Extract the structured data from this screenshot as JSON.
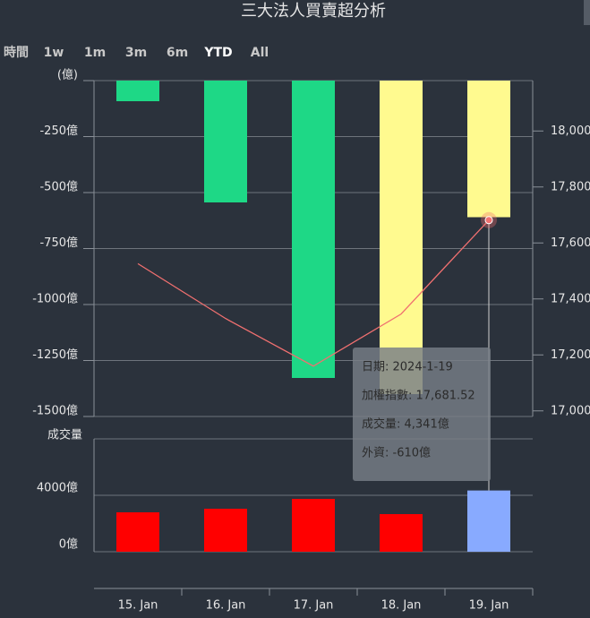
{
  "title": "三大法人買賣超分析",
  "range_selector": {
    "label": "時間",
    "buttons": [
      "1w",
      "1m",
      "3m",
      "6m",
      "YTD",
      "All"
    ],
    "selected": 4
  },
  "tooltip": [
    "日期: 2024-1-19",
    "加權指數: 17,681.52",
    "成交量: 4,341億",
    "外資: -610億"
  ],
  "chart_data": {
    "type": "bar",
    "categories": [
      "15. Jan",
      "16. Jan",
      "17. Jan",
      "18. Jan",
      "19. Jan"
    ],
    "ylim": [
      -1500,
      0
    ],
    "yticks": [
      {
        "value": 0,
        "label": "(億)"
      },
      {
        "value": -250,
        "label": "-250億"
      },
      {
        "value": -500,
        "label": "-500億"
      },
      {
        "value": -750,
        "label": "-750億"
      },
      {
        "value": -1000,
        "label": "-1000億"
      },
      {
        "value": -1250,
        "label": "-1250億"
      },
      {
        "value": -1500,
        "label": "-1500億"
      }
    ],
    "y2lim": [
      16980,
      18180
    ],
    "y2ticks": [
      {
        "value": 17000,
        "label": "17,000"
      },
      {
        "value": 17200,
        "label": "17,200"
      },
      {
        "value": 17400,
        "label": "17,400"
      },
      {
        "value": 17600,
        "label": "17,600"
      },
      {
        "value": 17800,
        "label": "17,800"
      },
      {
        "value": 18000,
        "label": "18,000"
      }
    ],
    "grid": true,
    "series": [
      {
        "type": "bar",
        "colors": [
          "#1ed886",
          "#1ed886",
          "#1ed886",
          "#fffa8f",
          "#fffa8f"
        ],
        "values": [
          -92,
          -544,
          -1328,
          -1400,
          -610
        ]
      },
      {
        "type": "line",
        "axis": "y2",
        "color": "#f07070",
        "values": [
          17526,
          17330,
          17160,
          17346,
          17681.52
        ]
      }
    ],
    "volume": {
      "label": "成交量",
      "ylim": [
        0,
        8000
      ],
      "yticks": [
        {
          "value": 0,
          "label": "0億"
        },
        {
          "value": 4000,
          "label": "4000億"
        }
      ],
      "colors": [
        "#ff0000",
        "#ff0000",
        "#ff0000",
        "#ff0000",
        "#88aaff"
      ],
      "values": [
        2794,
        3048,
        3746,
        2667,
        4341
      ]
    }
  }
}
